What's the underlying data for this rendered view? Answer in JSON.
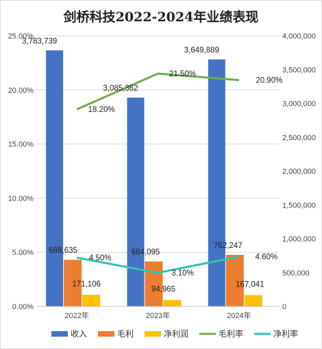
{
  "chart_data": {
    "type": "bar",
    "title": "剑桥科技2022-2024年业绩表现",
    "categories": [
      "2022年",
      "2023年",
      "2024年"
    ],
    "series": [
      {
        "name": "收入",
        "type": "bar",
        "axis": "right",
        "color": "#4472C4",
        "values": [
          3783739,
          3085362,
          3649889
        ],
        "labels": [
          "3,783,739",
          "3,085,362",
          "3,649,889"
        ]
      },
      {
        "name": "毛利",
        "type": "bar",
        "axis": "right",
        "color": "#ED7D31",
        "values": [
          688635,
          664095,
          762247
        ],
        "labels": [
          "688,635",
          "664,095",
          "762,247"
        ]
      },
      {
        "name": "净利润",
        "type": "bar",
        "axis": "right",
        "color": "#FFC000",
        "values": [
          171106,
          94965,
          167041
        ],
        "labels": [
          "171,106",
          "94,965",
          "167,041"
        ]
      },
      {
        "name": "毛利率",
        "type": "line",
        "axis": "left",
        "color": "#70AD47",
        "values": [
          18.2,
          21.5,
          20.9
        ],
        "labels": [
          "18.20%",
          "21.50%",
          "20.90%"
        ]
      },
      {
        "name": "净利率",
        "type": "line",
        "axis": "left",
        "color": "#2EC4B6",
        "values": [
          4.5,
          3.1,
          4.6
        ],
        "labels": [
          "4.50%",
          "3.10%",
          "4.60%"
        ]
      }
    ],
    "y_left": {
      "range": [
        0,
        25
      ],
      "ticks": [
        "0.00%",
        "5.00%",
        "10.00%",
        "15.00%",
        "20.00%",
        "25.00%"
      ]
    },
    "y_right": {
      "range": [
        0,
        4000000
      ],
      "ticks": [
        "0",
        "500,000",
        "1,000,000",
        "1,500,000",
        "2,000,000",
        "2,500,000",
        "3,000,000",
        "3,500,000",
        "4,000,000"
      ]
    },
    "grid": true,
    "legend_position": "bottom"
  }
}
